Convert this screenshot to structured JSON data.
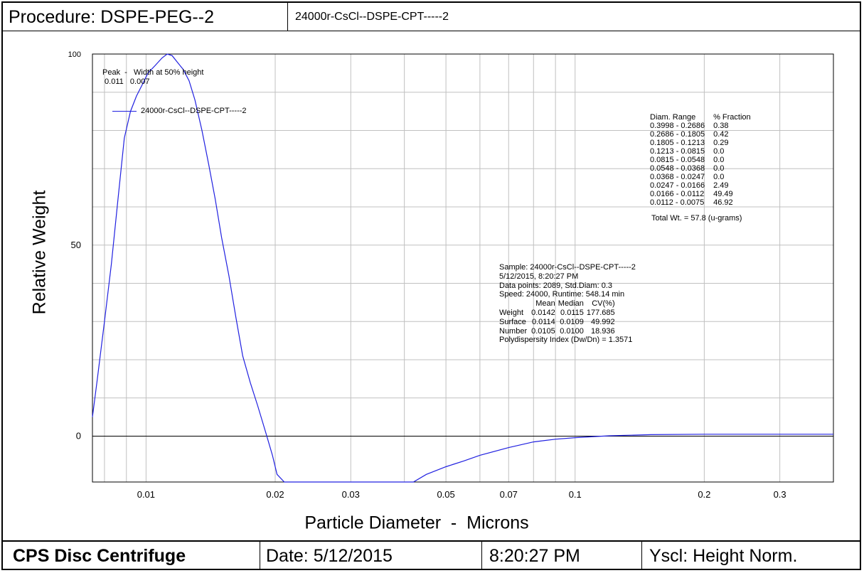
{
  "header": {
    "procedure": "Procedure: DSPE-PEG--2",
    "run_name": "24000r-CsCl--DSPE-CPT-----2"
  },
  "footer": {
    "instrument": "CPS Disc Centrifuge",
    "date": "Date: 5/12/2015",
    "time": "8:20:27 PM",
    "yscale": "Yscl: Height Norm."
  },
  "peak_info": {
    "header": "Peak  -   Width at 50% height",
    "values": " 0.011   0.007"
  },
  "diameter_ranges": {
    "header_range": "Diam. Range",
    "header_fraction": "%  Fraction",
    "rows": [
      {
        "range": "0.3998 - 0.2686",
        "fraction": "0.38"
      },
      {
        "range": "0.2686 - 0.1805",
        "fraction": "0.42"
      },
      {
        "range": "0.1805 - 0.1213",
        "fraction": "0.29"
      },
      {
        "range": "0.1213 - 0.0815",
        "fraction": "0.0"
      },
      {
        "range": "0.0815 - 0.0548",
        "fraction": "0.0"
      },
      {
        "range": "0.0548 - 0.0368",
        "fraction": "0.0"
      },
      {
        "range": "0.0368 - 0.0247",
        "fraction": "0.0"
      },
      {
        "range": "0.0247 - 0.0166",
        "fraction": "2.49"
      },
      {
        "range": "0.0166 - 0.0112",
        "fraction": "49.49"
      },
      {
        "range": "0.0112 - 0.0075",
        "fraction": "46.92"
      }
    ],
    "total": "Total Wt. = 57.8 (u-grams)"
  },
  "sample_info": {
    "sample": "Sample: 24000r-CsCl--DSPE-CPT-----2",
    "datetime": "5/12/2015,   8:20:27 PM",
    "points": "Data points: 2089,  Std.Diam: 0.3",
    "speed": "Speed: 24000,  Runtime: 548.14 min",
    "stats_header": [
      "",
      "Mean",
      "Median",
      "CV(%)"
    ],
    "stats_rows": [
      [
        "Weight",
        "0.0142",
        "0.0115",
        "177.685"
      ],
      [
        "Surface",
        "0.0114",
        "0.0109",
        "49.992"
      ],
      [
        "Number",
        "0.0105",
        "0.0100",
        "18.936"
      ]
    ],
    "pdi": "Polydispersity Index (Dw/Dn) = 1.3571"
  },
  "colors": {
    "curve": "#2020e0",
    "grid": "#c0c0c0",
    "axis": "#000000"
  },
  "chart_data": {
    "type": "line",
    "title": "",
    "xlabel": "Particle Diameter  -  Microns",
    "ylabel": "Relative Weight",
    "x_scale": "log",
    "xlim": [
      0.0075,
      0.4
    ],
    "ylim": [
      -12,
      100
    ],
    "x_tick_labels": [
      "0.01",
      "0.02",
      "0.03",
      "0.05",
      "0.07",
      "0.1",
      "0.2",
      "0.3"
    ],
    "y_tick_labels": [
      "100",
      "50",
      "0"
    ],
    "grid": true,
    "legend": "top-left",
    "series": [
      {
        "name": "24000r-CsCl--DSPE-CPT-----2",
        "x": [
          0.0075,
          0.0077,
          0.008,
          0.0083,
          0.0086,
          0.0089,
          0.0092,
          0.0095,
          0.0098,
          0.0101,
          0.0105,
          0.0109,
          0.0112,
          0.0115,
          0.0118,
          0.0122,
          0.0126,
          0.013,
          0.0135,
          0.014,
          0.0145,
          0.015,
          0.0156,
          0.0162,
          0.0168,
          0.0175,
          0.0182,
          0.019,
          0.0197,
          0.0202,
          0.021,
          0.022,
          0.025,
          0.03,
          0.035,
          0.04,
          0.042,
          0.045,
          0.05,
          0.055,
          0.06,
          0.07,
          0.08,
          0.09,
          0.1,
          0.12,
          0.15,
          0.2,
          0.3,
          0.4
        ],
        "y": [
          5,
          15,
          30,
          45,
          62,
          78,
          85,
          89,
          92,
          95,
          97,
          99,
          100,
          99.6,
          98,
          96,
          93,
          88,
          80,
          71,
          62,
          52,
          42,
          31,
          21,
          14,
          8,
          1,
          -5,
          -10,
          -12,
          -12,
          -12,
          -12,
          -12,
          -12,
          -12,
          -10,
          -8,
          -6.5,
          -5,
          -3,
          -1.5,
          -0.8,
          -0.4,
          0.1,
          0.4,
          0.5,
          0.5,
          0.5
        ]
      }
    ]
  }
}
